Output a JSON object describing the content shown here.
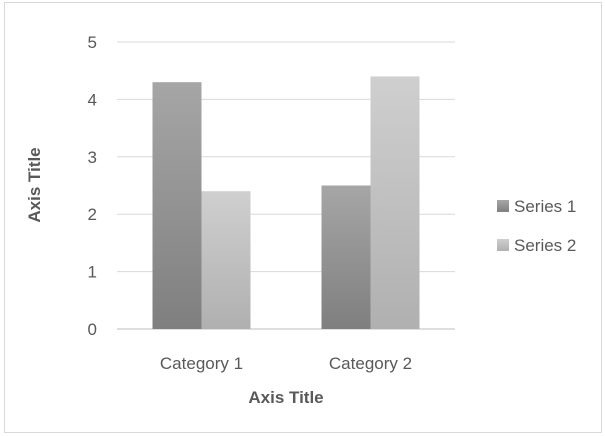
{
  "chart_data": {
    "type": "bar",
    "categories": [
      "Category 1",
      "Category 2"
    ],
    "series": [
      {
        "name": "Series 1",
        "values": [
          4.3,
          2.5
        ],
        "color": "#8c8c8c"
      },
      {
        "name": "Series 2",
        "values": [
          2.4,
          4.4
        ],
        "color": "#bfbfbf"
      }
    ],
    "yticks": [
      "0",
      "1",
      "2",
      "3",
      "4",
      "5"
    ],
    "ylim": [
      0,
      5
    ],
    "xlabel": "Axis Title",
    "ylabel": "Axis Title",
    "grid": true,
    "legend_position": "right"
  }
}
